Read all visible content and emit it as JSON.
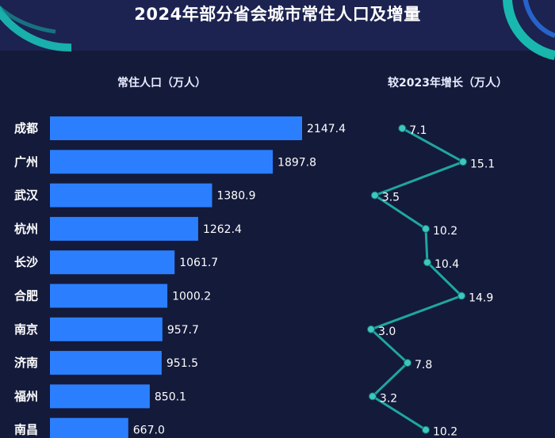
{
  "title": "2024年部分省会城市常住人口及增量",
  "colors": {
    "background": "#141a3a",
    "header_band": "#1c2350",
    "bar": "#2b7fff",
    "line": "#1fa6a0",
    "point": "#3ec7bd",
    "text": "#ffffff"
  },
  "chart_data": [
    {
      "type": "bar",
      "orientation": "horizontal",
      "title": "常住人口（万人）",
      "categories": [
        "成都",
        "广州",
        "武汉",
        "杭州",
        "长沙",
        "合肥",
        "南京",
        "济南",
        "福州",
        "南昌"
      ],
      "values": [
        2147.4,
        1897.8,
        1380.9,
        1262.4,
        1061.7,
        1000.2,
        957.7,
        951.5,
        850.1,
        667.0
      ],
      "value_labels": [
        "2147.4",
        "1897.8",
        "1380.9",
        "1262.4",
        "1061.7",
        "1000.2",
        "957.7",
        "951.5",
        "850.1",
        "667.0"
      ],
      "grid": false,
      "legend": "none"
    },
    {
      "type": "line",
      "orientation": "vertical",
      "title": "较2023年增长（万人）",
      "categories": [
        "成都",
        "广州",
        "武汉",
        "杭州",
        "长沙",
        "合肥",
        "南京",
        "济南",
        "福州",
        "南昌"
      ],
      "values": [
        7.1,
        15.1,
        3.5,
        10.2,
        10.4,
        14.9,
        3.0,
        7.8,
        3.2,
        10.2
      ],
      "value_labels": [
        "7.1",
        "15.1",
        "3.5",
        "10.2",
        "10.4",
        "14.9",
        "3.0",
        "7.8",
        "3.2",
        "10.2"
      ],
      "grid": false,
      "legend": "none"
    }
  ]
}
